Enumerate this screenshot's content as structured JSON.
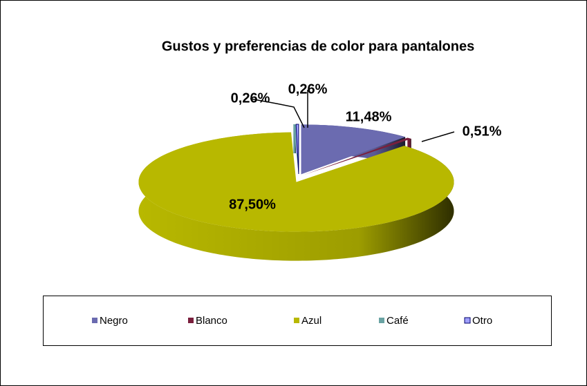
{
  "chart_data": {
    "type": "pie",
    "title": "Gustos y preferencias de color para pantalones",
    "categories": [
      "Negro",
      "Blanco",
      "Azul",
      "Café",
      "Otro"
    ],
    "values": [
      11.48,
      0.51,
      87.5,
      0.26,
      0.26
    ],
    "value_labels": [
      "11,48%",
      "0,51%",
      "87,50%",
      "0,26%",
      "0,26%"
    ],
    "colors": [
      "#6b6bb0",
      "#7a1f3d",
      "#b8b800",
      "#6aa3a3",
      "#a0a0ff"
    ],
    "legend": "bottom"
  }
}
